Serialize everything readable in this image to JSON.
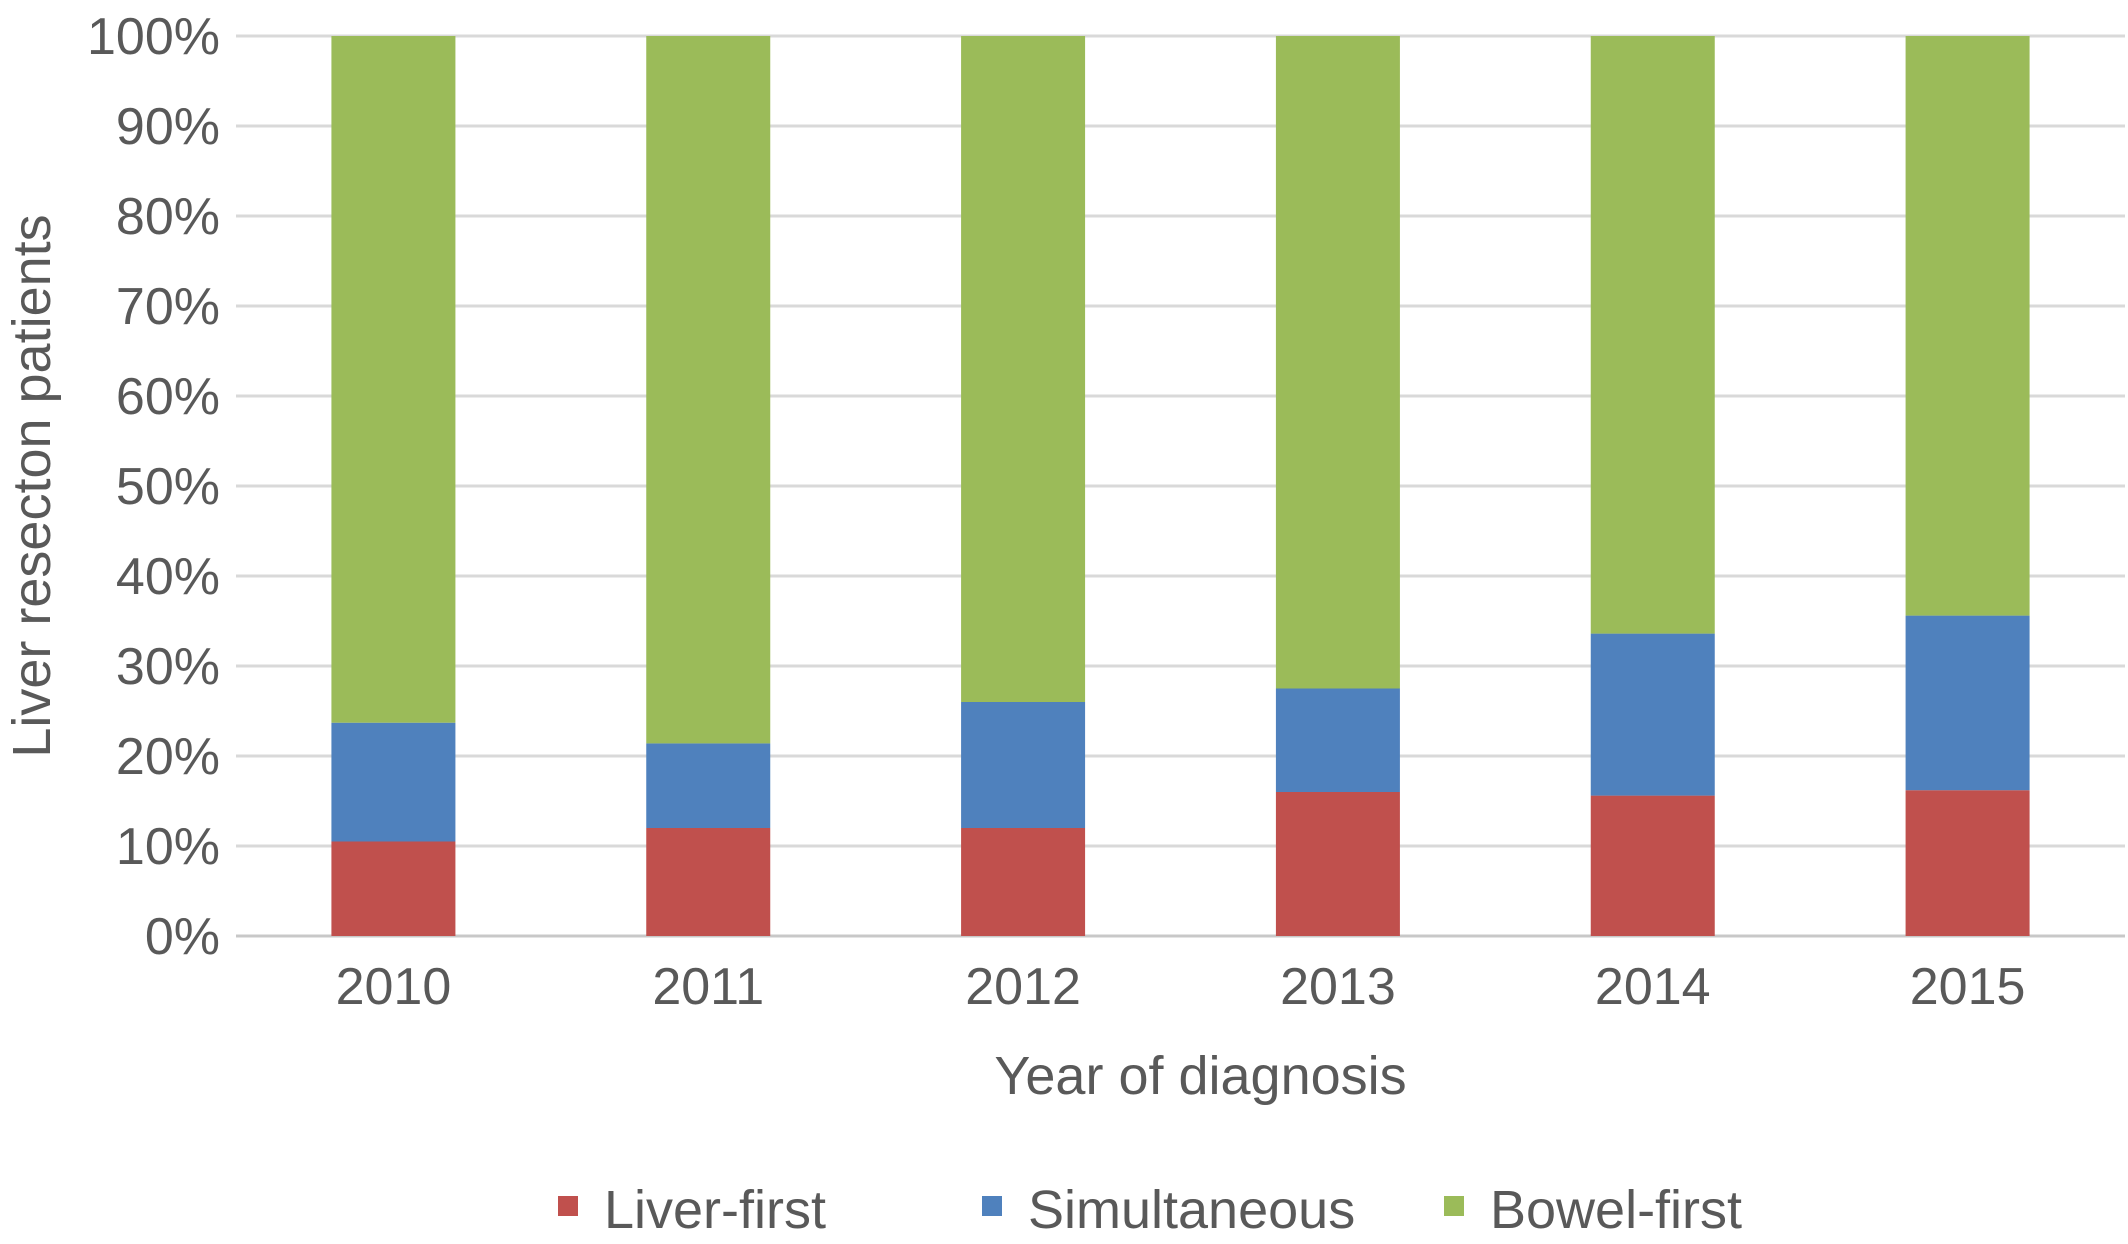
{
  "chart_data": {
    "type": "bar",
    "stacked": true,
    "percent_stacked": true,
    "title": "",
    "xlabel": "Year of diagnosis",
    "ylabel": "Liver resecton patients",
    "categories": [
      "2010",
      "2011",
      "2012",
      "2013",
      "2014",
      "2015"
    ],
    "y_tick_labels": [
      "0%",
      "10%",
      "20%",
      "30%",
      "40%",
      "50%",
      "60%",
      "70%",
      "80%",
      "90%",
      "100%"
    ],
    "ylim": [
      0,
      100
    ],
    "grid": true,
    "legend_position": "bottom",
    "series": [
      {
        "name": "Liver-first",
        "color": "#c0504d",
        "values": [
          10.5,
          12,
          12,
          16,
          15.6,
          16.2
        ]
      },
      {
        "name": "Simultaneous",
        "color": "#4f81bd",
        "values": [
          13.2,
          9.4,
          14,
          11.5,
          18,
          19.4
        ]
      },
      {
        "name": "Bowel-first",
        "color": "#9bbb59",
        "values": [
          76.3,
          78.6,
          74,
          72.5,
          66.4,
          64.4
        ]
      }
    ]
  }
}
